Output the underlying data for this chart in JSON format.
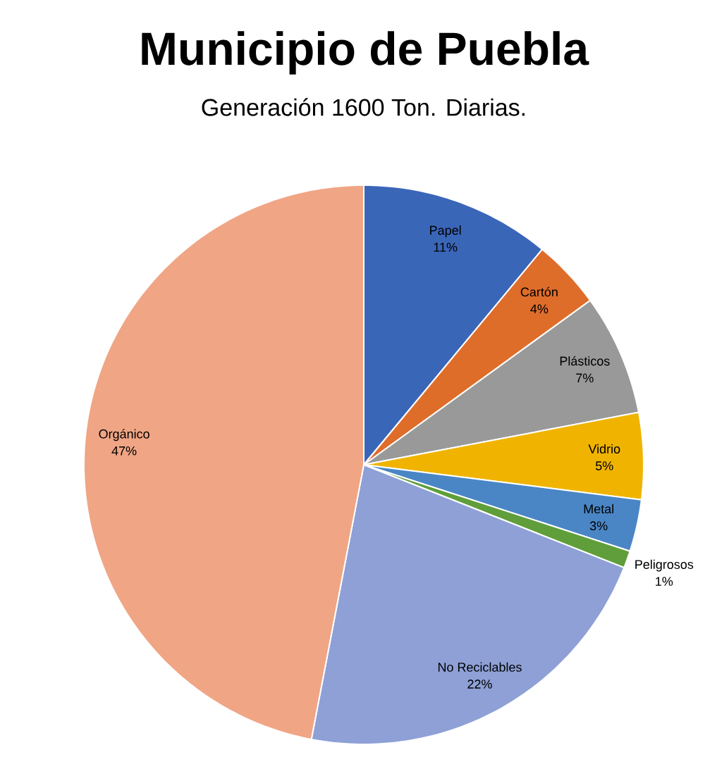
{
  "chart_data": {
    "type": "pie",
    "title": "Municipio de Puebla",
    "subtitle": "Generación 1600 Ton. Diarias.",
    "categories": [
      "Papel",
      "Cartón",
      "Plásticos",
      "Vidrio",
      "Metal",
      "Peligrosos",
      "No Reciclables",
      "Orgánico"
    ],
    "values": [
      11,
      4,
      7,
      5,
      3,
      1,
      22,
      47
    ],
    "colors": [
      "#3a66b8",
      "#df6d2a",
      "#999999",
      "#f0b400",
      "#4a86c5",
      "#5f9e3a",
      "#8ea0d6",
      "#f0a585"
    ],
    "value_labels": [
      "11%",
      "4%",
      "7%",
      "5%",
      "3%",
      "1%",
      "22%",
      "47%"
    ]
  }
}
